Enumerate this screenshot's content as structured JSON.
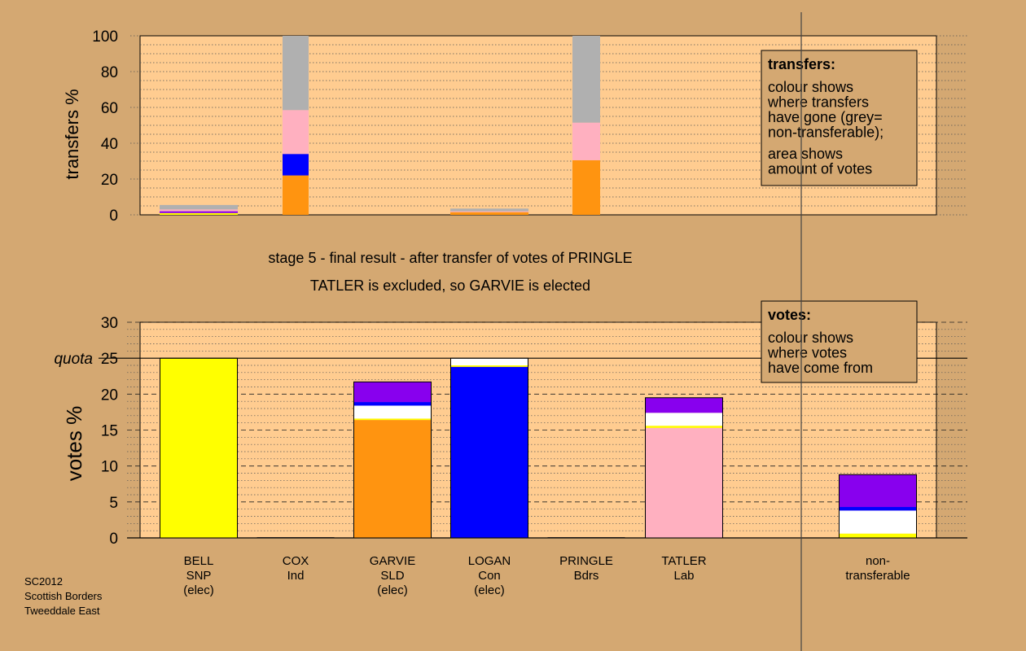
{
  "colors": {
    "background": "#d4a872",
    "plot_bg": "#ffcc90",
    "grid": "#555555",
    "SNP": "#ffff00",
    "Ind": "#111111",
    "SLD": "#ff9410",
    "Con": "#0000ff",
    "Bdrs": "#8800ee",
    "Lab": "#ffb0c0",
    "white": "#ffffff",
    "nontransferable": "#b0b0b0"
  },
  "title_line1": "stage 5 - final result - after transfer of votes of PRINGLE",
  "title_line2": "TATLER is excluded, so GARVIE is elected",
  "footer": [
    "SC2012",
    "Scottish Borders",
    "Tweeddale East"
  ],
  "chart_data": [
    {
      "type": "bar",
      "stacked": true,
      "ylabel": "transfers %",
      "ylim": [
        0,
        100
      ],
      "yticks": [
        0,
        20,
        40,
        60,
        80,
        100
      ],
      "grid": true,
      "legend": {
        "title": "transfers:",
        "lines1": [
          "colour shows",
          "where transfers",
          "have gone (grey=",
          "non-transferable);"
        ],
        "lines2": [
          "area shows",
          "amount of votes"
        ]
      },
      "bars": [
        {
          "candidate": "BELL",
          "segments": [
            {
              "color": "SNP",
              "value": 1.0
            },
            {
              "color": "Bdrs",
              "value": 1.0
            },
            {
              "color": "Lab",
              "value": 1.0
            },
            {
              "color": "nontransferable",
              "value": 2.5
            }
          ]
        },
        {
          "candidate": "COX",
          "segments": [
            {
              "color": "SLD",
              "value": 22
            },
            {
              "color": "Con",
              "value": 12
            },
            {
              "color": "Lab",
              "value": 24.5
            },
            {
              "color": "nontransferable",
              "value": 41.5
            }
          ]
        },
        {
          "candidate": "LOGAN",
          "segments": [
            {
              "color": "SLD",
              "value": 1.5
            },
            {
              "color": "Lab",
              "value": 0.5
            },
            {
              "color": "nontransferable",
              "value": 1.5
            }
          ]
        },
        {
          "candidate": "PRINGLE",
          "segments": [
            {
              "color": "SLD",
              "value": 30.5
            },
            {
              "color": "Lab",
              "value": 21
            },
            {
              "color": "nontransferable",
              "value": 48.5
            }
          ]
        }
      ]
    },
    {
      "type": "bar",
      "stacked": true,
      "ylabel": "votes %",
      "ylim": [
        0,
        30
      ],
      "yticks": [
        0,
        5,
        10,
        15,
        20,
        25,
        30
      ],
      "quota": 25,
      "quota_label": "quota",
      "grid": true,
      "legend": {
        "title": "votes:",
        "lines": [
          "colour shows",
          "where votes",
          "have come from"
        ]
      },
      "bars": [
        {
          "label": [
            "BELL",
            "SNP",
            "(elec)"
          ],
          "segments": [
            {
              "color": "SNP",
              "value": 25
            }
          ]
        },
        {
          "label": [
            "COX",
            "Ind"
          ],
          "segments": [
            {
              "color": "Ind",
              "value": 0.1
            }
          ]
        },
        {
          "label": [
            "GARVIE",
            "SLD",
            "(elec)"
          ],
          "segments": [
            {
              "color": "SLD",
              "value": 16.4
            },
            {
              "color": "SNP",
              "value": 0.2
            },
            {
              "color": "white",
              "value": 1.8
            },
            {
              "color": "Con",
              "value": 0.5
            },
            {
              "color": "Bdrs",
              "value": 2.8
            }
          ]
        },
        {
          "label": [
            "LOGAN",
            "Con",
            "(elec)"
          ],
          "segments": [
            {
              "color": "Con",
              "value": 23.8
            },
            {
              "color": "SNP",
              "value": 0.2
            },
            {
              "color": "white",
              "value": 1.0
            }
          ]
        },
        {
          "label": [
            "PRINGLE",
            "Bdrs"
          ],
          "segments": [
            {
              "color": "Ind",
              "value": 0.1
            }
          ]
        },
        {
          "label": [
            "TATLER",
            "Lab"
          ],
          "segments": [
            {
              "color": "Lab",
              "value": 15.3
            },
            {
              "color": "SNP",
              "value": 0.3
            },
            {
              "color": "white",
              "value": 1.8
            },
            {
              "color": "Bdrs",
              "value": 2.1
            }
          ]
        },
        {
          "label": [
            "non-",
            "transferable"
          ],
          "segments": [
            {
              "color": "SNP",
              "value": 0.6
            },
            {
              "color": "white",
              "value": 3.2
            },
            {
              "color": "Con",
              "value": 0.5
            },
            {
              "color": "Bdrs",
              "value": 4.5
            }
          ]
        }
      ]
    }
  ]
}
